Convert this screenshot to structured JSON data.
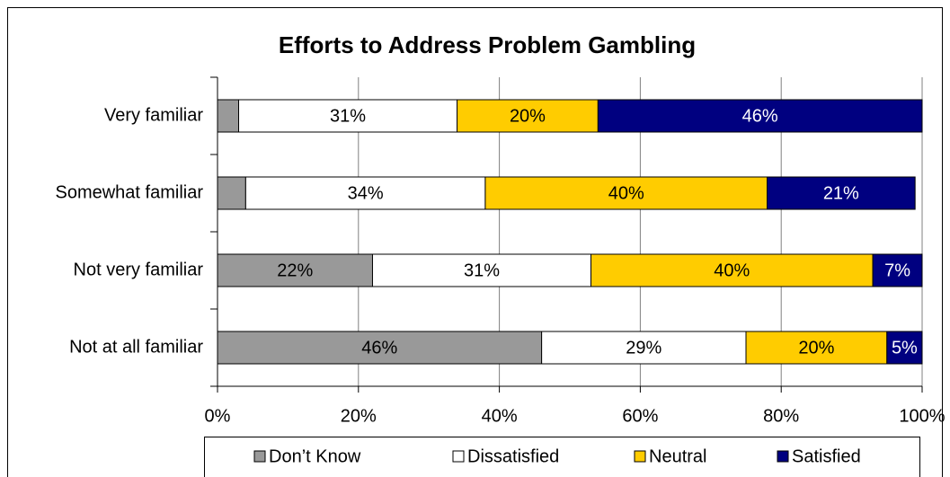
{
  "chart_data": {
    "type": "stacked_barh",
    "title": "Efforts to Address Problem Gambling",
    "categories": [
      "Very familiar",
      "Somewhat familiar",
      "Not very familiar",
      "Not at all familiar"
    ],
    "series": [
      {
        "name": "Don’t Know",
        "color": "#999999",
        "values": [
          3,
          4,
          22,
          46
        ],
        "value_labels": [
          null,
          null,
          "22%",
          "46%"
        ]
      },
      {
        "name": "Dissatisfied",
        "color": "#ffffff",
        "values": [
          31,
          34,
          31,
          29
        ],
        "value_labels": [
          "31%",
          "34%",
          "31%",
          "29%"
        ]
      },
      {
        "name": "Neutral",
        "color": "#ffcc00",
        "values": [
          20,
          40,
          40,
          20
        ],
        "value_labels": [
          "20%",
          "40%",
          "40%",
          "20%"
        ]
      },
      {
        "name": "Satisfied",
        "color": "#000080",
        "values": [
          46,
          21,
          7,
          5
        ],
        "value_labels": [
          "46%",
          "21%",
          "7%",
          "5%"
        ]
      }
    ],
    "xlim": [
      0,
      100
    ],
    "xticks": [
      {
        "value": 0,
        "label": "0%"
      },
      {
        "value": 20,
        "label": "20%"
      },
      {
        "value": 40,
        "label": "40%"
      },
      {
        "value": 60,
        "label": "60%"
      },
      {
        "value": 80,
        "label": "80%"
      },
      {
        "value": 100,
        "label": "100%"
      }
    ],
    "grid": true,
    "legend": "bottom"
  }
}
